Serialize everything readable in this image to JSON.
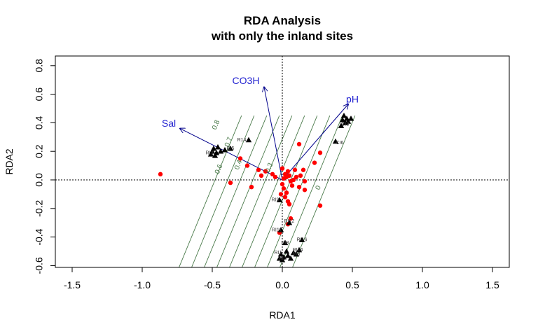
{
  "chart_data": {
    "type": "scatter",
    "title": "RDA Analysis",
    "subtitle": "with only the inland sites",
    "xlabel": "RDA1",
    "ylabel": "RDA2",
    "xlim": [
      -1.6,
      1.6
    ],
    "ylim": [
      -0.6,
      0.88
    ],
    "xticks": [
      -1.5,
      -1.0,
      -0.5,
      0.0,
      0.5,
      1.0,
      1.5
    ],
    "xtick_labels": [
      "-1.5",
      "-1.0",
      "-0.5",
      "0.0",
      "0.5",
      "1.0",
      "1.5"
    ],
    "yticks": [
      -0.6,
      -0.4,
      -0.2,
      0.0,
      0.2,
      0.4,
      0.6,
      0.8
    ],
    "ytick_labels": [
      "-0.6",
      "-0.4",
      "-0.2",
      "0.0",
      "0.2",
      "0.4",
      "0.6",
      "0.8"
    ],
    "env_vectors": [
      {
        "label": "CO3H",
        "x": -0.13,
        "y": 0.65
      },
      {
        "label": "Sal",
        "x": -0.73,
        "y": 0.36
      },
      {
        "label": "pH",
        "x": 0.47,
        "y": 0.53
      }
    ],
    "env_label_positions": [
      {
        "label": "CO3H",
        "x": -0.26,
        "y": 0.69
      },
      {
        "label": "Sal",
        "x": -0.81,
        "y": 0.39
      },
      {
        "label": "pH",
        "x": 0.5,
        "y": 0.56
      }
    ],
    "site_points": [
      {
        "x": -0.51,
        "y": 0.18
      },
      {
        "x": -0.49,
        "y": 0.22
      },
      {
        "x": -0.47,
        "y": 0.19
      },
      {
        "x": -0.5,
        "y": 0.2
      },
      {
        "x": -0.46,
        "y": 0.23
      },
      {
        "x": -0.48,
        "y": 0.17
      },
      {
        "x": -0.44,
        "y": 0.2
      },
      {
        "x": -0.41,
        "y": 0.21
      },
      {
        "x": -0.37,
        "y": 0.22
      },
      {
        "x": -0.24,
        "y": 0.28
      },
      {
        "x": 0.44,
        "y": 0.45
      },
      {
        "x": 0.46,
        "y": 0.43
      },
      {
        "x": 0.45,
        "y": 0.4
      },
      {
        "x": 0.47,
        "y": 0.41
      },
      {
        "x": 0.43,
        "y": 0.42
      },
      {
        "x": 0.49,
        "y": 0.43
      },
      {
        "x": 0.42,
        "y": 0.38
      },
      {
        "x": 0.38,
        "y": 0.27
      },
      {
        "x": -0.02,
        "y": -0.14
      },
      {
        "x": 0.05,
        "y": -0.3
      },
      {
        "x": -0.01,
        "y": -0.35
      },
      {
        "x": 0.02,
        "y": -0.44
      },
      {
        "x": 0.14,
        "y": -0.42
      },
      {
        "x": 0.12,
        "y": -0.49
      },
      {
        "x": 0.1,
        "y": -0.52
      },
      {
        "x": 0.03,
        "y": -0.5
      },
      {
        "x": -0.01,
        "y": -0.52
      },
      {
        "x": 0.01,
        "y": -0.54
      },
      {
        "x": 0.04,
        "y": -0.53
      },
      {
        "x": 0.08,
        "y": -0.51
      },
      {
        "x": -0.02,
        "y": -0.55
      },
      {
        "x": 0.0,
        "y": -0.56
      },
      {
        "x": 0.06,
        "y": -0.55
      }
    ],
    "site_labels": [
      {
        "text": "R14",
        "x": -0.29,
        "y": 0.27
      },
      {
        "text": "RI5",
        "x": -0.37,
        "y": 0.21
      },
      {
        "text": "RI3",
        "x": -0.52,
        "y": 0.18
      },
      {
        "text": "CI3",
        "x": 0.45,
        "y": 0.38
      },
      {
        "text": "CI6",
        "x": 0.41,
        "y": 0.25
      },
      {
        "text": "RI9",
        "x": -0.05,
        "y": -0.15
      },
      {
        "text": "RI12",
        "x": 0.05,
        "y": -0.3
      },
      {
        "text": "RI11",
        "x": -0.04,
        "y": -0.36
      },
      {
        "text": "RI16",
        "x": 0.14,
        "y": -0.43
      },
      {
        "text": "RI8",
        "x": 0.02,
        "y": -0.45
      },
      {
        "text": "RI14",
        "x": 0.11,
        "y": -0.5
      },
      {
        "text": "RI3",
        "x": 0.1,
        "y": -0.53
      },
      {
        "text": "RI1",
        "x": -0.03,
        "y": -0.52
      },
      {
        "text": "RI0",
        "x": 0.0,
        "y": -0.56
      }
    ],
    "species_points": [
      {
        "x": -0.87,
        "y": 0.04
      },
      {
        "x": -0.37,
        "y": -0.02
      },
      {
        "x": -0.22,
        "y": -0.05
      },
      {
        "x": -0.3,
        "y": 0.15
      },
      {
        "x": -0.25,
        "y": 0.1
      },
      {
        "x": -0.17,
        "y": 0.07
      },
      {
        "x": -0.15,
        "y": 0.03
      },
      {
        "x": -0.12,
        "y": 0.06
      },
      {
        "x": -0.07,
        "y": 0.04
      },
      {
        "x": -0.05,
        "y": 0.02
      },
      {
        "x": 0.12,
        "y": 0.25
      },
      {
        "x": 0.27,
        "y": 0.19
      },
      {
        "x": 0.23,
        "y": 0.12
      },
      {
        "x": 0.15,
        "y": 0.07
      },
      {
        "x": 0.13,
        "y": 0.03
      },
      {
        "x": 0.16,
        "y": -0.01
      },
      {
        "x": 0.16,
        "y": -0.07
      },
      {
        "x": 0.12,
        "y": -0.05
      },
      {
        "x": 0.1,
        "y": 0.02
      },
      {
        "x": 0.09,
        "y": 0.07
      },
      {
        "x": 0.08,
        "y": 0.0
      },
      {
        "x": 0.07,
        "y": -0.04
      },
      {
        "x": 0.05,
        "y": 0.03
      },
      {
        "x": 0.04,
        "y": 0.06
      },
      {
        "x": 0.02,
        "y": 0.04
      },
      {
        "x": 0.01,
        "y": 0.01
      },
      {
        "x": 0.0,
        "y": -0.03
      },
      {
        "x": 0.01,
        "y": -0.06
      },
      {
        "x": 0.03,
        "y": -0.09
      },
      {
        "x": 0.02,
        "y": -0.12
      },
      {
        "x": 0.04,
        "y": -0.15
      },
      {
        "x": 0.05,
        "y": -0.17
      },
      {
        "x": 0.06,
        "y": -0.27
      },
      {
        "x": 0.04,
        "y": -0.31
      },
      {
        "x": -0.02,
        "y": -0.37
      },
      {
        "x": 0.27,
        "y": -0.18
      },
      {
        "x": 0.03,
        "y": 0.02
      },
      {
        "x": 0.06,
        "y": -0.01
      },
      {
        "x": 0.0,
        "y": 0.08
      },
      {
        "x": -0.01,
        "y": -0.1
      }
    ],
    "contours": {
      "angle_dx_per_dy": 0.42,
      "x_intercepts": [
        -0.48,
        -0.39,
        -0.3,
        -0.21,
        -0.12,
        -0.03,
        0.06,
        0.15,
        0.24,
        0.33
      ],
      "labels": [
        {
          "text": "0.8",
          "x": -0.46,
          "y": 0.38
        },
        {
          "text": "0.7",
          "x": -0.37,
          "y": 0.26
        },
        {
          "text": "0.6",
          "x": -0.44,
          "y": 0.07
        },
        {
          "text": "0.4",
          "x": -0.3,
          "y": 0.1
        },
        {
          "text": "0.3",
          "x": -0.08,
          "y": 0.08
        },
        {
          "text": "0",
          "x": 0.27,
          "y": -0.06
        }
      ]
    },
    "reference_lines": {
      "x": 0,
      "y": 0,
      "style": "dotted"
    },
    "colors": {
      "site": "#000000",
      "species": "#ff0000",
      "vector": "#00008b",
      "vector_label": "#1f1fd0",
      "contour": "#4a7a4a"
    }
  }
}
